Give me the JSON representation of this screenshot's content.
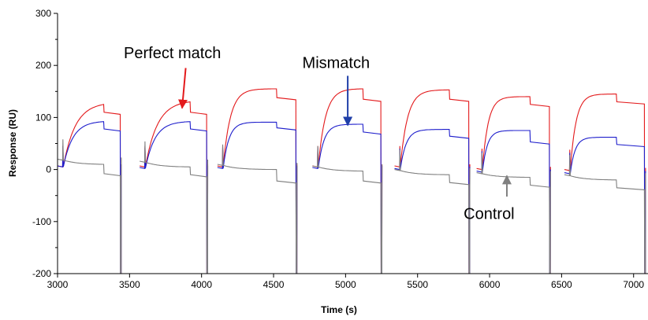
{
  "chart_data": {
    "type": "line",
    "title": "",
    "xlabel": "Time (s)",
    "ylabel": "Response (RU)",
    "xlim": [
      3000,
      7100
    ],
    "ylim": [
      -200,
      300
    ],
    "xticks": [
      3000,
      3500,
      4000,
      4500,
      5000,
      5500,
      6000,
      6500,
      7000
    ],
    "yticks": [
      -200,
      -100,
      0,
      100,
      200,
      300
    ],
    "grid": false,
    "legend": "none",
    "injections": [
      {
        "start": 3040,
        "dissoc": 3320,
        "end": 3440
      },
      {
        "start": 3610,
        "dissoc": 3920,
        "end": 4040
      },
      {
        "start": 4150,
        "dissoc": 4520,
        "end": 4660
      },
      {
        "start": 4810,
        "dissoc": 5120,
        "end": 5250
      },
      {
        "start": 5380,
        "dissoc": 5720,
        "end": 5860
      },
      {
        "start": 5950,
        "dissoc": 6280,
        "end": 6420
      },
      {
        "start": 6560,
        "dissoc": 6880,
        "end": 7080
      }
    ],
    "series": [
      {
        "color": "#e31a1c",
        "baselines": [
          5,
          5,
          5,
          5,
          5,
          0,
          -2
        ],
        "peaks": [
          125,
          130,
          155,
          155,
          153,
          140,
          145
        ],
        "drops": [
          110,
          110,
          138,
          135,
          135,
          125,
          130
        ],
        "rates": [
          0.012,
          0.012,
          0.02,
          0.02,
          0.02,
          0.025,
          0.025
        ]
      },
      {
        "color": "#1f1fcc",
        "baselines": [
          5,
          2,
          2,
          2,
          0,
          -5,
          -8
        ],
        "peaks": [
          92,
          92,
          91,
          87,
          77,
          75,
          62
        ],
        "drops": [
          78,
          78,
          80,
          72,
          64,
          53,
          48
        ],
        "rates": [
          0.015,
          0.015,
          0.025,
          0.025,
          0.025,
          0.03,
          0.03
        ]
      },
      {
        "color": "#808080",
        "baselines": [
          18,
          14,
          8,
          5,
          -2,
          -8,
          -12
        ],
        "peaks": [
          10,
          5,
          0,
          -3,
          -10,
          -15,
          -20
        ],
        "drops": [
          -8,
          -10,
          -22,
          -22,
          -25,
          -30,
          -35
        ],
        "rates": [
          0.01,
          0.01,
          0.01,
          0.01,
          0.01,
          0.01,
          0.01
        ]
      }
    ],
    "annotations": [
      {
        "text": "Perfect match",
        "color": "#e31a1c",
        "label_x": 3460,
        "label_y": 214,
        "arrow_from": [
          3890,
          195
        ],
        "arrow_to": [
          3865,
          118
        ]
      },
      {
        "text": "Mismatch",
        "color": "#1f3fa8",
        "label_x": 4700,
        "label_y": 195,
        "arrow_from": [
          5015,
          180
        ],
        "arrow_to": [
          5015,
          85
        ]
      },
      {
        "text": "Control",
        "color": "#808080",
        "label_x": 5820,
        "label_y": -95,
        "arrow_from": [
          6120,
          -52
        ],
        "arrow_to": [
          6120,
          -12
        ]
      }
    ]
  }
}
